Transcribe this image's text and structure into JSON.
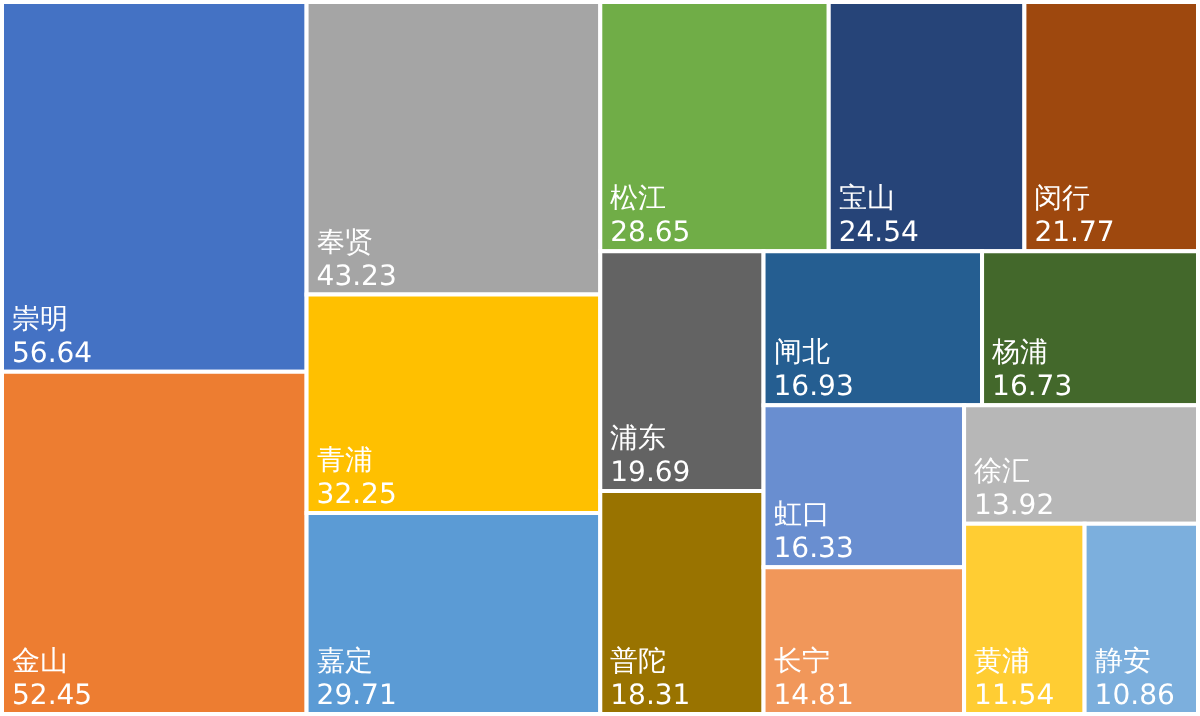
{
  "chart_data": {
    "type": "other",
    "categories": [
      "崇明",
      "金山",
      "奉贤",
      "青浦",
      "嘉定",
      "松江",
      "宝山",
      "闵行",
      "浦东",
      "普陀",
      "闸北",
      "杨浦",
      "虹口",
      "长宁",
      "徐汇",
      "黄浦",
      "静安"
    ],
    "values": [
      56.64,
      52.45,
      43.23,
      32.25,
      29.71,
      28.65,
      24.54,
      21.77,
      19.69,
      18.31,
      16.93,
      16.73,
      16.33,
      14.81,
      13.92,
      11.54,
      10.86
    ],
    "colors": [
      "#4472c4",
      "#ed7d31",
      "#a5a5a5",
      "#ffc000",
      "#5b9bd5",
      "#70ad47",
      "#264478",
      "#9e480e",
      "#636363",
      "#997300",
      "#255e91",
      "#43682b",
      "#698ed0",
      "#f1975a",
      "#b7b7b7",
      "#ffcd33",
      "#7cafdd"
    ],
    "data_labels": true
  }
}
